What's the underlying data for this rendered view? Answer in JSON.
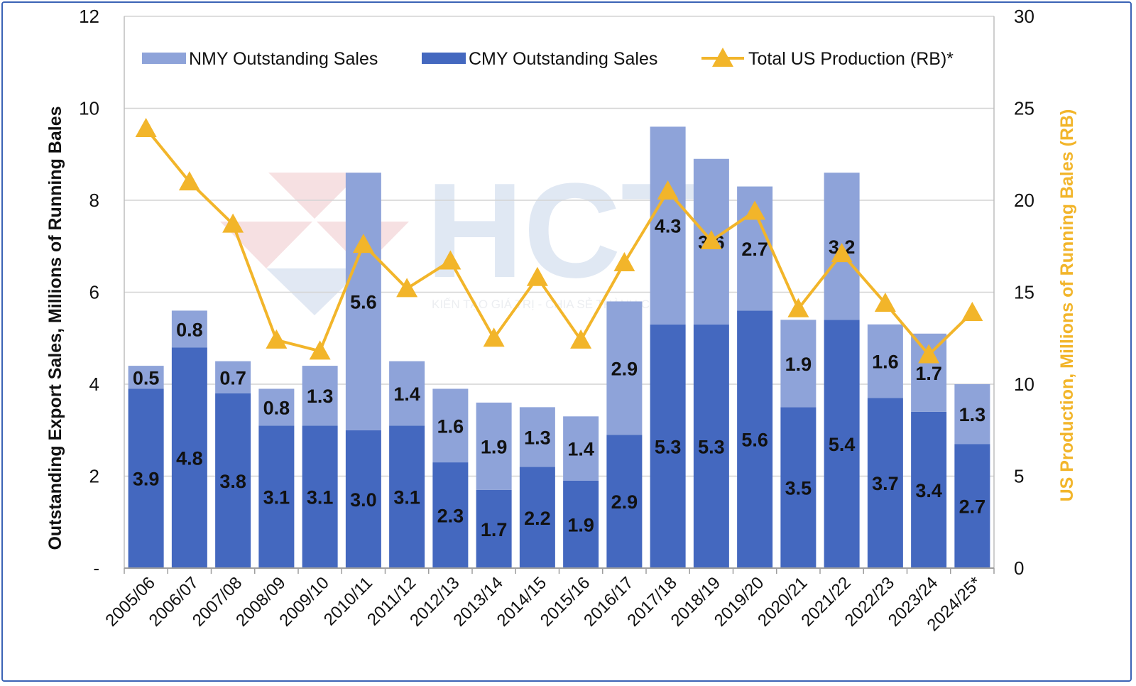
{
  "chart_data": {
    "type": "bar",
    "stacked": true,
    "title": "",
    "ylabel": "Outstanding Export Sales, Millions of Running Bales",
    "y2label": "US Production, Millions of Running Bales (RB)",
    "ylim": [
      0,
      12
    ],
    "y2lim": [
      0,
      30
    ],
    "yticks": [
      "-",
      "2",
      "4",
      "6",
      "8",
      "10",
      "12"
    ],
    "y2ticks": [
      "0",
      "5",
      "10",
      "15",
      "20",
      "25",
      "30"
    ],
    "grid": true,
    "legend_position": "top",
    "categories": [
      "2005/06",
      "2006/07",
      "2007/08",
      "2008/09",
      "2009/10",
      "2010/11",
      "2011/12",
      "2012/13",
      "2013/14",
      "2014/15",
      "2015/16",
      "2016/17",
      "2017/18",
      "2018/19",
      "2019/20",
      "2020/21",
      "2021/22",
      "2022/23",
      "2023/24",
      "2024/25*"
    ],
    "series": [
      {
        "name": "CMY Outstanding Sales",
        "kind": "bar",
        "color": "#4468bf",
        "values": [
          3.9,
          4.8,
          3.8,
          3.1,
          3.1,
          3.0,
          3.1,
          2.3,
          1.7,
          2.2,
          1.9,
          2.9,
          5.3,
          5.3,
          5.6,
          3.5,
          5.4,
          3.7,
          3.4,
          2.7
        ],
        "labels": [
          "3.9",
          "4.8",
          "3.8",
          "3.1",
          "3.1",
          "3.0",
          "3.1",
          "2.3",
          "1.7",
          "2.2",
          "1.9",
          "2.9",
          "5.3",
          "5.3",
          "5.6",
          "3.5",
          "5.4",
          "3.7",
          "3.4",
          "2.7"
        ]
      },
      {
        "name": "NMY Outstanding Sales",
        "kind": "bar",
        "color": "#8ea3d9",
        "values": [
          0.5,
          0.8,
          0.7,
          0.8,
          1.3,
          5.6,
          1.4,
          1.6,
          1.9,
          1.3,
          1.4,
          2.9,
          4.3,
          3.6,
          2.7,
          1.9,
          3.2,
          1.6,
          1.7,
          1.3
        ],
        "labels": [
          "0.5",
          "0.8",
          "0.7",
          "0.8",
          "1.3",
          "5.6",
          "1.4",
          "1.6",
          "1.9",
          "1.3",
          "1.4",
          "2.9",
          "4.3",
          "3.6",
          "2.7",
          "1.9",
          "3.2",
          "1.6",
          "1.7",
          "1.3"
        ]
      },
      {
        "name": "Total US Production (RB)*",
        "kind": "line",
        "axis": "right",
        "color": "#f2b52a",
        "values": [
          23.9,
          21.0,
          18.7,
          12.4,
          11.8,
          17.6,
          15.2,
          16.7,
          12.5,
          15.8,
          12.4,
          16.6,
          20.5,
          17.8,
          19.4,
          14.1,
          17.1,
          14.4,
          11.6,
          13.9
        ]
      }
    ],
    "legend": [
      {
        "name": "NMY Outstanding Sales",
        "color": "#8ea3d9"
      },
      {
        "name": "CMY Outstanding Sales",
        "color": "#4468bf"
      },
      {
        "name": "Total US Production (RB)*",
        "color": "#f2b52a"
      }
    ]
  },
  "watermark": {
    "logo": "HCT",
    "tagline": "KIẾN TẠO GIÁ TRỊ - CHIA SẺ THÀNH CÔNG"
  }
}
